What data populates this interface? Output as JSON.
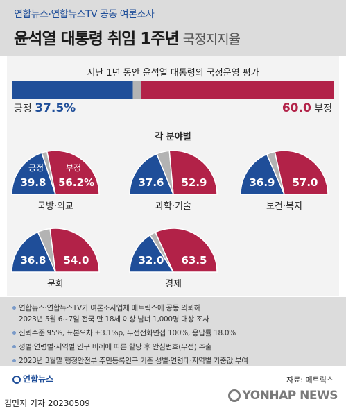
{
  "header": {
    "top_line": "연합뉴스·연합뉴스TV 공동 여론조사",
    "title": "윤석열 대통령 취임 1주년",
    "title_sub": "국정지지율"
  },
  "chart_data": {
    "type": "bar",
    "overall": {
      "title": "지난 1년 동안 윤석열 대통령의 국정운영 평가",
      "positive_label": "긍정",
      "positive": 37.5,
      "positive_text": "37.5%",
      "negative_label": "부정",
      "negative": 60.0,
      "negative_text": "60.0",
      "colors": {
        "positive": "#1f4e99",
        "negative": "#b22248",
        "other": "#b3b3b3"
      }
    },
    "by_field": {
      "title": "각 분야별",
      "type": "pie",
      "first_pos_label": "긍정",
      "first_neg_label": "부정",
      "categories": [
        "국방·외교",
        "과학·기술",
        "보건·복지",
        "문화",
        "경제"
      ],
      "positive": [
        39.8,
        37.6,
        36.9,
        36.8,
        32.0
      ],
      "negative": [
        56.2,
        52.9,
        57.0,
        54.0,
        63.5
      ],
      "positive_text": [
        "39.8",
        "37.6",
        "36.9",
        "36.8",
        "32.0"
      ],
      "negative_text": [
        "56.2%",
        "52.9",
        "57.0",
        "54.0",
        "63.5"
      ]
    }
  },
  "notes": [
    "연합뉴스·연합뉴스TV가 여론조사업체 메트릭스에 공동 의뢰해",
    "2023년 5월 6~7일 전국 만 18세 이상 남녀 1,000명 대상 조사",
    "신뢰수준 95%, 표본오차 ±3.1%p, 무선전화면접 100%, 응답률 18.0%",
    "성별·연령별·지역별 인구 비례에 따른 할당 후 안심번호(무선) 추출",
    "2023년 3월말 행정안전부 주민등록인구 기준 성별·연령대·지역별 가중값 부여"
  ],
  "footer": {
    "logo": "연합뉴스",
    "source": "자료: 메트릭스",
    "byline": "김민지 기자  20230509",
    "watermark": "YONHAP NEWS"
  }
}
